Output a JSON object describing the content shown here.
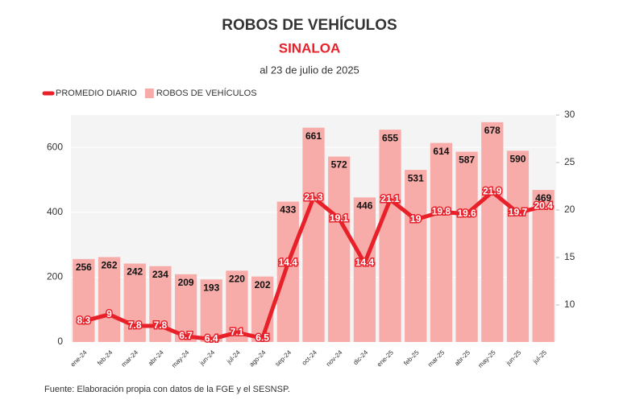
{
  "chart_data": {
    "type": "bar",
    "title": "ROBOS DE VEHÍCULOS",
    "subtitle": "SINALOA",
    "date_note": "al 23 de julio de 2025",
    "source": "Fuente: Elaboración propia con datos de la FGE y el SESNSP.",
    "categories": [
      "ene-24",
      "feb-24",
      "mar-24",
      "abr-24",
      "may-24",
      "jun-24",
      "jul-24",
      "ago-24",
      "sep-24",
      "oct-24",
      "nov-24",
      "dic-24",
      "ene-25",
      "feb-25",
      "mar-25",
      "abr-25",
      "may-25",
      "jun-25",
      "jul-25"
    ],
    "series": [
      {
        "name": "PROMEDIO DIARIO",
        "type": "line",
        "axis": "y2",
        "color": "#e8202a",
        "values": [
          8.3,
          9,
          7.8,
          7.8,
          6.7,
          6.4,
          7.1,
          6.5,
          14.4,
          21.3,
          19.1,
          14.4,
          21.1,
          19,
          19.8,
          19.6,
          21.9,
          19.7,
          20.4
        ]
      },
      {
        "name": "ROBOS DE VEHÍCULOS",
        "type": "bar",
        "color": "#f8aca9",
        "values": [
          256,
          262,
          242,
          234,
          209,
          193,
          220,
          202,
          433,
          661,
          572,
          446,
          655,
          531,
          614,
          587,
          678,
          590,
          469
        ]
      }
    ],
    "ylim": [
      0,
      700
    ],
    "yticks": [
      0,
      200,
      400,
      600
    ],
    "y2lim": [
      6.1,
      30
    ],
    "y2ticks": [
      10,
      15,
      20,
      25,
      30
    ],
    "grid": true,
    "legend": "top-left"
  }
}
